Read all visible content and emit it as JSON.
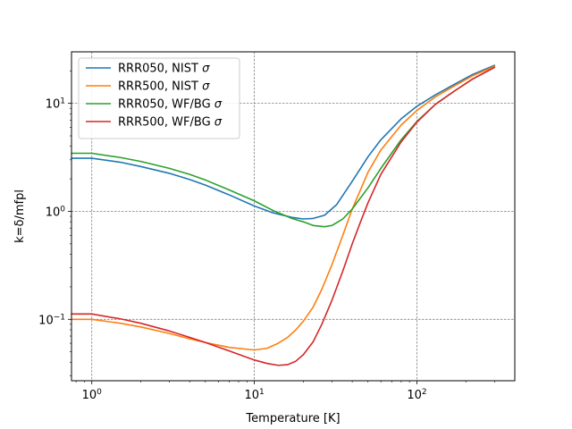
{
  "chart_data": {
    "type": "line",
    "title": "",
    "xlabel": "Temperature [K]",
    "ylabel": "k=δ/mfpl",
    "xscale": "log",
    "yscale": "log",
    "xlim": [
      0.75,
      400
    ],
    "ylim": [
      0.027,
      30
    ],
    "grid": true,
    "legend_position": "top-left",
    "x_ticks": [
      {
        "value": 1,
        "base": "10",
        "exp": "0"
      },
      {
        "value": 10,
        "base": "10",
        "exp": "1"
      },
      {
        "value": 100,
        "base": "10",
        "exp": "2"
      }
    ],
    "y_ticks": [
      {
        "value": 0.1,
        "base": "10",
        "exp": "−1"
      },
      {
        "value": 1,
        "base": "10",
        "exp": "0"
      },
      {
        "value": 10,
        "base": "10",
        "exp": "1"
      }
    ],
    "series": [
      {
        "name": "RRR050, NIST σ",
        "label_text": "RRR050, NIST ",
        "label_sigma": "σ",
        "color": "#1f77b4",
        "points": [
          [
            0.75,
            3.1
          ],
          [
            1,
            3.1
          ],
          [
            1.5,
            2.85
          ],
          [
            2,
            2.6
          ],
          [
            3,
            2.25
          ],
          [
            4,
            1.97
          ],
          [
            5,
            1.75
          ],
          [
            7,
            1.42
          ],
          [
            10,
            1.12
          ],
          [
            13,
            0.97
          ],
          [
            17,
            0.88
          ],
          [
            20,
            0.85
          ],
          [
            23,
            0.86
          ],
          [
            27,
            0.92
          ],
          [
            32,
            1.15
          ],
          [
            40,
            1.9
          ],
          [
            50,
            3.2
          ],
          [
            60,
            4.6
          ],
          [
            80,
            7.2
          ],
          [
            100,
            9.4
          ],
          [
            130,
            12.0
          ],
          [
            170,
            15.0
          ],
          [
            220,
            18.5
          ],
          [
            300,
            22.5
          ]
        ]
      },
      {
        "name": "RRR500, NIST σ",
        "label_text": "RRR500, NIST ",
        "label_sigma": "σ",
        "color": "#ff7f0e",
        "points": [
          [
            0.75,
            0.1
          ],
          [
            1,
            0.1
          ],
          [
            1.5,
            0.092
          ],
          [
            2,
            0.085
          ],
          [
            3,
            0.074
          ],
          [
            4,
            0.066
          ],
          [
            5,
            0.061
          ],
          [
            7,
            0.055
          ],
          [
            10,
            0.052
          ],
          [
            12,
            0.054
          ],
          [
            14,
            0.06
          ],
          [
            16,
            0.068
          ],
          [
            18,
            0.08
          ],
          [
            20,
            0.096
          ],
          [
            23,
            0.13
          ],
          [
            26,
            0.19
          ],
          [
            30,
            0.32
          ],
          [
            35,
            0.6
          ],
          [
            40,
            1.05
          ],
          [
            50,
            2.3
          ],
          [
            60,
            3.7
          ],
          [
            80,
            6.3
          ],
          [
            100,
            8.6
          ],
          [
            130,
            11.5
          ],
          [
            170,
            14.5
          ],
          [
            220,
            18.0
          ],
          [
            300,
            22.0
          ]
        ]
      },
      {
        "name": "RRR050, WF/BG σ",
        "label_text": "RRR050, WF/BG ",
        "label_sigma": "σ",
        "color": "#2ca02c",
        "points": [
          [
            0.75,
            3.45
          ],
          [
            1,
            3.45
          ],
          [
            1.5,
            3.15
          ],
          [
            2,
            2.9
          ],
          [
            3,
            2.5
          ],
          [
            4,
            2.2
          ],
          [
            5,
            1.95
          ],
          [
            7,
            1.58
          ],
          [
            10,
            1.25
          ],
          [
            13,
            1.02
          ],
          [
            17,
            0.86
          ],
          [
            20,
            0.8
          ],
          [
            23,
            0.74
          ],
          [
            27,
            0.72
          ],
          [
            30,
            0.74
          ],
          [
            35,
            0.85
          ],
          [
            40,
            1.05
          ],
          [
            50,
            1.65
          ],
          [
            60,
            2.5
          ],
          [
            80,
            4.6
          ],
          [
            100,
            6.8
          ],
          [
            130,
            9.8
          ],
          [
            170,
            13.0
          ],
          [
            220,
            16.8
          ],
          [
            300,
            21.5
          ]
        ]
      },
      {
        "name": "RRR500, WF/BG σ",
        "label_text": "RRR500, WF/BG ",
        "label_sigma": "σ",
        "color": "#d62728",
        "points": [
          [
            0.75,
            0.112
          ],
          [
            1,
            0.112
          ],
          [
            1.5,
            0.101
          ],
          [
            2,
            0.092
          ],
          [
            3,
            0.078
          ],
          [
            4,
            0.068
          ],
          [
            5,
            0.061
          ],
          [
            7,
            0.051
          ],
          [
            10,
            0.042
          ],
          [
            12,
            0.039
          ],
          [
            14,
            0.0375
          ],
          [
            16,
            0.038
          ],
          [
            18,
            0.041
          ],
          [
            20,
            0.047
          ],
          [
            23,
            0.062
          ],
          [
            26,
            0.09
          ],
          [
            30,
            0.15
          ],
          [
            35,
            0.28
          ],
          [
            40,
            0.5
          ],
          [
            45,
            0.8
          ],
          [
            50,
            1.2
          ],
          [
            60,
            2.2
          ],
          [
            80,
            4.4
          ],
          [
            100,
            6.7
          ],
          [
            130,
            9.8
          ],
          [
            170,
            13.0
          ],
          [
            220,
            16.8
          ],
          [
            300,
            21.5
          ]
        ]
      }
    ]
  }
}
